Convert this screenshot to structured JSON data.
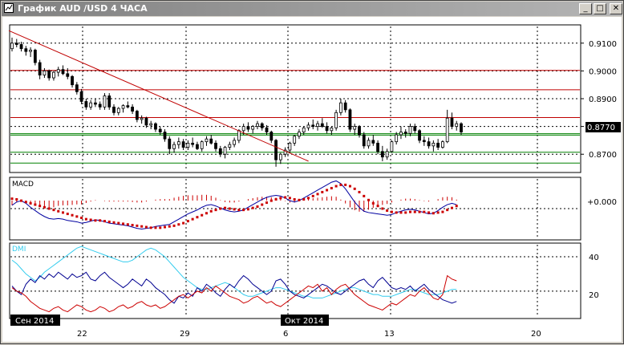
{
  "window": {
    "title": "График AUD /USD  4 ЧАСА",
    "buttons": {
      "minimize": "_",
      "maximize": "□",
      "close": "✕"
    },
    "title_icon": "chart-window-icon"
  },
  "colors": {
    "background": "#ffffff",
    "candles": "#000000",
    "resistance": "#c00000",
    "support": "#008000",
    "macd_line": "#0000a0",
    "macd_signal": "#cc0000",
    "dmi_adx": "#33ccee",
    "dmi_plus": "#000090",
    "dmi_minus": "#cc0000"
  },
  "price_panel": {
    "ticks": [
      "0.9100",
      "0.9000",
      "0.8900",
      "0.8800",
      "0.8700"
    ],
    "current_price": "0.8770"
  },
  "macd_panel": {
    "label": "MACD",
    "zero_label": "+0.000"
  },
  "dmi_panel": {
    "label": "DMI",
    "ticks": [
      "40",
      "20"
    ]
  },
  "time_axis": {
    "labels": [
      "22",
      "29",
      "6",
      "13",
      "20"
    ],
    "month_labels": [
      "Сен 2014",
      "Окт 2014"
    ]
  },
  "chart_data": {
    "type": "candlestick",
    "symbol": "AUD/USD",
    "timeframe": "4 ЧАСА",
    "price_range": [
      0.864,
      0.916
    ],
    "candles": [
      [
        0.908,
        0.912,
        0.907,
        0.91
      ],
      [
        0.91,
        0.9115,
        0.9085,
        0.9095
      ],
      [
        0.9095,
        0.9105,
        0.907,
        0.908
      ],
      [
        0.908,
        0.909,
        0.9055,
        0.907
      ],
      [
        0.907,
        0.9085,
        0.905,
        0.9075
      ],
      [
        0.9075,
        0.908,
        0.902,
        0.903
      ],
      [
        0.903,
        0.904,
        0.897,
        0.8985
      ],
      [
        0.8985,
        0.901,
        0.8975,
        0.9
      ],
      [
        0.9,
        0.9005,
        0.8965,
        0.8975
      ],
      [
        0.8975,
        0.9,
        0.8965,
        0.8995
      ],
      [
        0.8995,
        0.9015,
        0.898,
        0.9005
      ],
      [
        0.9005,
        0.902,
        0.8985,
        0.899
      ],
      [
        0.899,
        0.901,
        0.897,
        0.898
      ],
      [
        0.898,
        0.8985,
        0.894,
        0.895
      ],
      [
        0.895,
        0.896,
        0.8915,
        0.8925
      ],
      [
        0.8925,
        0.8935,
        0.888,
        0.889
      ],
      [
        0.889,
        0.89,
        0.886,
        0.887
      ],
      [
        0.887,
        0.8895,
        0.886,
        0.8885
      ],
      [
        0.8885,
        0.89,
        0.887,
        0.888
      ],
      [
        0.888,
        0.889,
        0.886,
        0.887
      ],
      [
        0.887,
        0.892,
        0.886,
        0.891
      ],
      [
        0.891,
        0.892,
        0.886,
        0.887
      ],
      [
        0.887,
        0.888,
        0.884,
        0.885
      ],
      [
        0.885,
        0.887,
        0.884,
        0.8865
      ],
      [
        0.8865,
        0.888,
        0.885,
        0.8875
      ],
      [
        0.8875,
        0.889,
        0.8865,
        0.887
      ],
      [
        0.887,
        0.888,
        0.8845,
        0.8855
      ],
      [
        0.8855,
        0.886,
        0.8815,
        0.8825
      ],
      [
        0.8825,
        0.884,
        0.881,
        0.883
      ],
      [
        0.883,
        0.8835,
        0.8795,
        0.8805
      ],
      [
        0.8805,
        0.882,
        0.879,
        0.881
      ],
      [
        0.881,
        0.8815,
        0.878,
        0.879
      ],
      [
        0.879,
        0.88,
        0.877,
        0.878
      ],
      [
        0.878,
        0.879,
        0.8745,
        0.8755
      ],
      [
        0.8755,
        0.8765,
        0.87,
        0.872
      ],
      [
        0.872,
        0.8745,
        0.8705,
        0.8735
      ],
      [
        0.8735,
        0.876,
        0.872,
        0.8745
      ],
      [
        0.8745,
        0.8755,
        0.8715,
        0.8725
      ],
      [
        0.8725,
        0.875,
        0.8715,
        0.874
      ],
      [
        0.874,
        0.876,
        0.8725,
        0.8735
      ],
      [
        0.8735,
        0.8745,
        0.8715,
        0.872
      ],
      [
        0.872,
        0.875,
        0.871,
        0.8745
      ],
      [
        0.8745,
        0.8765,
        0.873,
        0.8755
      ],
      [
        0.8755,
        0.877,
        0.8735,
        0.874
      ],
      [
        0.874,
        0.875,
        0.871,
        0.872
      ],
      [
        0.872,
        0.873,
        0.869,
        0.87
      ],
      [
        0.87,
        0.873,
        0.8685,
        0.8725
      ],
      [
        0.8725,
        0.8745,
        0.8715,
        0.8735
      ],
      [
        0.8735,
        0.876,
        0.8725,
        0.875
      ],
      [
        0.875,
        0.879,
        0.874,
        0.8785
      ],
      [
        0.8785,
        0.881,
        0.877,
        0.88
      ],
      [
        0.88,
        0.8815,
        0.878,
        0.879
      ],
      [
        0.879,
        0.8805,
        0.8775,
        0.88
      ],
      [
        0.88,
        0.882,
        0.879,
        0.881
      ],
      [
        0.881,
        0.8815,
        0.8785,
        0.8795
      ],
      [
        0.8795,
        0.8805,
        0.877,
        0.878
      ],
      [
        0.878,
        0.8785,
        0.874,
        0.875
      ],
      [
        0.875,
        0.8755,
        0.8655,
        0.868
      ],
      [
        0.868,
        0.8705,
        0.8665,
        0.87
      ],
      [
        0.87,
        0.8725,
        0.869,
        0.8715
      ],
      [
        0.8715,
        0.8745,
        0.8705,
        0.874
      ],
      [
        0.874,
        0.877,
        0.873,
        0.8765
      ],
      [
        0.8765,
        0.879,
        0.8755,
        0.878
      ],
      [
        0.878,
        0.88,
        0.877,
        0.8795
      ],
      [
        0.8795,
        0.8815,
        0.8785,
        0.8805
      ],
      [
        0.8805,
        0.8825,
        0.879,
        0.88
      ],
      [
        0.88,
        0.882,
        0.8785,
        0.881
      ],
      [
        0.881,
        0.883,
        0.8795,
        0.88
      ],
      [
        0.88,
        0.8815,
        0.8775,
        0.8785
      ],
      [
        0.8785,
        0.88,
        0.877,
        0.8795
      ],
      [
        0.8795,
        0.886,
        0.8785,
        0.885
      ],
      [
        0.885,
        0.89,
        0.884,
        0.8885
      ],
      [
        0.8885,
        0.8895,
        0.885,
        0.886
      ],
      [
        0.886,
        0.8865,
        0.878,
        0.879
      ],
      [
        0.879,
        0.881,
        0.877,
        0.88
      ],
      [
        0.88,
        0.8805,
        0.876,
        0.877
      ],
      [
        0.877,
        0.878,
        0.872,
        0.873
      ],
      [
        0.873,
        0.876,
        0.872,
        0.875
      ],
      [
        0.875,
        0.877,
        0.873,
        0.874
      ],
      [
        0.874,
        0.875,
        0.87,
        0.871
      ],
      [
        0.871,
        0.873,
        0.8675,
        0.869
      ],
      [
        0.869,
        0.872,
        0.868,
        0.871
      ],
      [
        0.871,
        0.875,
        0.8705,
        0.8745
      ],
      [
        0.8745,
        0.878,
        0.8735,
        0.877
      ],
      [
        0.877,
        0.88,
        0.8755,
        0.878
      ],
      [
        0.878,
        0.879,
        0.876,
        0.8775
      ],
      [
        0.8775,
        0.881,
        0.8765,
        0.88
      ],
      [
        0.88,
        0.881,
        0.8775,
        0.8785
      ],
      [
        0.8785,
        0.879,
        0.874,
        0.875
      ],
      [
        0.875,
        0.8765,
        0.873,
        0.8745
      ],
      [
        0.8745,
        0.876,
        0.872,
        0.873
      ],
      [
        0.873,
        0.875,
        0.871,
        0.874
      ],
      [
        0.874,
        0.8755,
        0.8715,
        0.8725
      ],
      [
        0.8725,
        0.875,
        0.872,
        0.8745
      ],
      [
        0.8745,
        0.886,
        0.874,
        0.883
      ],
      [
        0.883,
        0.885,
        0.879,
        0.88
      ],
      [
        0.88,
        0.882,
        0.8785,
        0.881
      ],
      [
        0.881,
        0.8815,
        0.877,
        0.878
      ]
    ],
    "trendline": {
      "from": [
        0,
        0.9145
      ],
      "to": [
        96,
        0.8675
      ]
    },
    "resistance_levels": [
      0.9002,
      0.8932,
      0.8832
    ],
    "support_levels": [
      0.8774,
      0.8769,
      0.8707,
      0.8668
    ],
    "macd": {
      "zero": 0,
      "range": [
        -0.0045,
        0.0045
      ],
      "line": [
        0.0005,
        0.001,
        0.0012,
        0.0008,
        0.0002,
        -0.0003,
        -0.0008,
        -0.0012,
        -0.0015,
        -0.0016,
        -0.0015,
        -0.0016,
        -0.0018,
        -0.0019,
        -0.002,
        -0.0022,
        -0.0021,
        -0.0019,
        -0.0017,
        -0.0018,
        -0.002,
        -0.0022,
        -0.0023,
        -0.0024,
        -0.0025,
        -0.0026,
        -0.0028,
        -0.003,
        -0.0031,
        -0.003,
        -0.0029,
        -0.0027,
        -0.0026,
        -0.0025,
        -0.0024,
        -0.002,
        -0.0016,
        -0.0012,
        -0.0008,
        -0.0005,
        -0.0002,
        0.0002,
        0.0005,
        0.0006,
        0.0004,
        0.0001,
        -0.0002,
        -0.0004,
        -0.0005,
        -0.0004,
        -0.0002,
        0.0002,
        0.0006,
        0.001,
        0.0014,
        0.0017,
        0.0019,
        0.002,
        0.0019,
        0.0016,
        0.0012,
        0.001,
        0.0012,
        0.0016,
        0.002,
        0.0024,
        0.0028,
        0.0032,
        0.0036,
        0.004,
        0.0042,
        0.0038,
        0.003,
        0.002,
        0.001,
        0.0002,
        -0.0004,
        -0.0006,
        -0.0007,
        -0.0008,
        -0.0009,
        -0.001,
        -0.0009,
        -0.0006,
        -0.0004,
        -0.0002,
        -0.0001,
        -0.0002,
        -0.0004,
        -0.0006,
        -0.0008,
        -0.0007,
        -0.0003,
        0.0002,
        0.0006,
        0.0008,
        0.0006
      ],
      "signal": [
        0.0015,
        0.0014,
        0.0012,
        0.001,
        0.0008,
        0.0006,
        0.0004,
        0.0002,
        0.0,
        -0.0002,
        -0.0004,
        -0.0006,
        -0.0008,
        -0.001,
        -0.0012,
        -0.0014,
        -0.0016,
        -0.0017,
        -0.0018,
        -0.0018,
        -0.0019,
        -0.002,
        -0.0021,
        -0.0022,
        -0.0023,
        -0.0024,
        -0.0025,
        -0.0026,
        -0.0027,
        -0.0028,
        -0.0029,
        -0.0029,
        -0.0029,
        -0.0028,
        -0.0027,
        -0.0026,
        -0.0024,
        -0.0022,
        -0.0019,
        -0.0016,
        -0.0013,
        -0.001,
        -0.0007,
        -0.0004,
        -0.0002,
        0.0,
        0.0001,
        0.0,
        -0.0001,
        -0.0002,
        -0.0002,
        -0.0001,
        0.0001,
        0.0003,
        0.0006,
        0.0009,
        0.0012,
        0.0014,
        0.0016,
        0.0017,
        0.0016,
        0.0014,
        0.0013,
        0.0014,
        0.0016,
        0.0019,
        0.0022,
        0.0025,
        0.0028,
        0.0031,
        0.0034,
        0.0036,
        0.0036,
        0.0034,
        0.003,
        0.0025,
        0.0019,
        0.0013,
        0.0008,
        0.0004,
        0.0,
        -0.0003,
        -0.0005,
        -0.0006,
        -0.0006,
        -0.0006,
        -0.0005,
        -0.0005,
        -0.0005,
        -0.0005,
        -0.0006,
        -0.0007,
        -0.0006,
        -0.0005,
        -0.0002,
        0.0001,
        0.0004
      ]
    },
    "dmi": {
      "range": [
        5,
        47
      ],
      "adx": [
        38,
        36,
        33,
        30,
        28,
        26,
        28,
        31,
        33,
        35,
        37,
        39,
        41,
        43,
        45,
        46,
        45,
        44,
        43,
        42,
        41,
        40,
        39,
        38,
        37,
        37,
        38,
        40,
        42,
        44,
        45,
        44,
        42,
        40,
        37,
        34,
        31,
        28,
        26,
        24,
        22,
        21,
        21,
        22,
        23,
        24,
        25,
        24,
        22,
        20,
        18,
        17,
        17,
        18,
        19,
        20,
        21,
        22,
        22,
        21,
        20,
        19,
        18,
        17,
        17,
        16,
        16,
        16,
        17,
        18,
        19,
        20,
        21,
        22,
        22,
        21,
        20,
        19,
        18,
        18,
        17,
        17,
        17,
        18,
        19,
        20,
        21,
        21,
        20,
        19,
        18,
        18,
        18,
        19,
        20,
        21,
        21
      ],
      "plus": [
        23,
        20,
        18,
        24,
        27,
        25,
        29,
        27,
        30,
        28,
        31,
        29,
        27,
        30,
        28,
        29,
        31,
        27,
        26,
        29,
        31,
        28,
        26,
        24,
        22,
        24,
        27,
        25,
        23,
        27,
        25,
        22,
        20,
        18,
        15,
        13,
        17,
        16,
        19,
        17,
        22,
        20,
        24,
        22,
        19,
        17,
        21,
        24,
        22,
        26,
        29,
        27,
        24,
        22,
        20,
        18,
        20,
        26,
        27,
        24,
        20,
        18,
        17,
        16,
        18,
        20,
        22,
        24,
        23,
        21,
        19,
        18,
        20,
        22,
        24,
        26,
        27,
        24,
        22,
        26,
        28,
        25,
        22,
        21,
        22,
        21,
        23,
        20,
        22,
        24,
        21,
        19,
        17,
        15,
        14,
        13,
        14
      ],
      "minus": [
        22,
        20,
        19,
        17,
        14,
        12,
        10,
        9,
        8,
        10,
        11,
        9,
        8,
        10,
        12,
        11,
        9,
        8,
        9,
        11,
        10,
        8,
        9,
        11,
        12,
        10,
        11,
        13,
        14,
        12,
        11,
        12,
        10,
        11,
        13,
        15,
        17,
        18,
        16,
        18,
        20,
        19,
        22,
        20,
        23,
        21,
        19,
        17,
        16,
        15,
        13,
        14,
        16,
        17,
        15,
        13,
        14,
        12,
        11,
        13,
        15,
        17,
        19,
        21,
        23,
        22,
        24,
        20,
        22,
        18,
        21,
        23,
        24,
        21,
        18,
        16,
        14,
        12,
        11,
        10,
        9,
        11,
        13,
        12,
        14,
        16,
        18,
        17,
        20,
        22,
        19,
        16,
        15,
        18,
        29,
        27,
        26
      ]
    }
  }
}
